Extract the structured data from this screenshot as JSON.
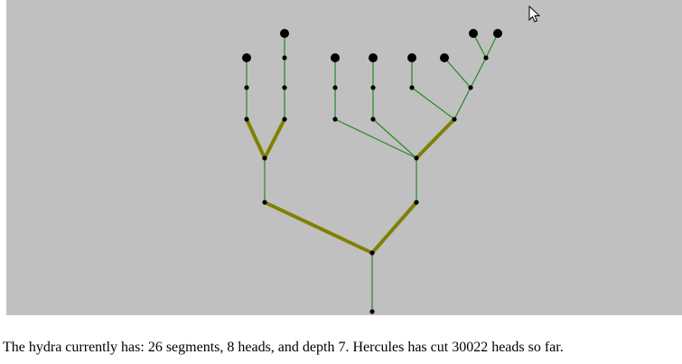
{
  "colors": {
    "canvas_bg": "#c0c0c0",
    "thin_edge": "#228b22",
    "thick_edge": "#808000",
    "node": "#000000"
  },
  "status": {
    "p1": "The hydra currently has: ",
    "segments": "26",
    "p2": " segments, ",
    "heads": "8",
    "p3": " heads, and depth ",
    "depth": "7",
    "p4": ". Hercules has cut ",
    "cut": "30022",
    "p5": " heads so far."
  },
  "icons": {
    "cursor": "mouse-pointer-icon"
  }
}
